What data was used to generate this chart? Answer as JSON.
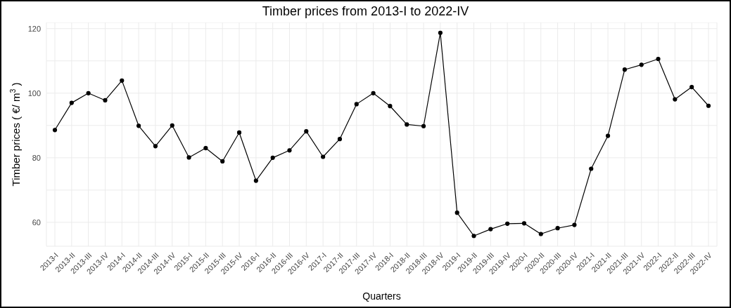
{
  "chart_data": {
    "type": "line",
    "title": "Timber prices from 2013-I to 2022-IV",
    "xlabel": "Quarters",
    "ylabel": "Timber prices ( €/ m$^{3}$ )",
    "categories": [
      "2013-I",
      "2013-II",
      "2013-III",
      "2013-IV",
      "2014-I",
      "2014-II",
      "2014-III",
      "2014-IV",
      "2015-I",
      "2015-II",
      "2015-III",
      "2015-IV",
      "2016-I",
      "2016-II",
      "2016-III",
      "2016-IV",
      "2017-I",
      "2017-II",
      "2017-III",
      "2017-IV",
      "2018-I",
      "2018-II",
      "2018-III",
      "2018-IV",
      "2019-I",
      "2019-II",
      "2019-III",
      "2019-IV",
      "2020-I",
      "2020-II",
      "2020-III",
      "2020-IV",
      "2021-I",
      "2021-II",
      "2021-III",
      "2021-IV",
      "2022-I",
      "2022-II",
      "2022-III",
      "2022-IV"
    ],
    "series": [
      {
        "color": "#000000",
        "values": [
          88.6,
          97.0,
          100.0,
          97.8,
          103.9,
          89.9,
          83.6,
          90.0,
          80.1,
          83.0,
          78.9,
          87.8,
          72.9,
          80.0,
          82.3,
          88.2,
          80.3,
          85.8,
          96.6,
          100.0,
          96.0,
          90.3,
          89.8,
          118.7,
          63.0,
          55.8,
          57.9,
          59.6,
          59.7,
          56.4,
          58.2,
          59.2,
          76.6,
          86.8,
          107.3,
          108.8,
          110.6,
          98.1,
          101.9,
          96.1
        ]
      }
    ],
    "ylim": [
      52.6,
      121.9
    ],
    "yticks": [
      60,
      {
        "value": 70,
        "label": null
      },
      80,
      {
        "value": 90,
        "label": null
      },
      100,
      {
        "value": 110,
        "label": null
      },
      120
    ],
    "grid": true,
    "legend": false,
    "marker": "circle",
    "line_style": "solid"
  }
}
